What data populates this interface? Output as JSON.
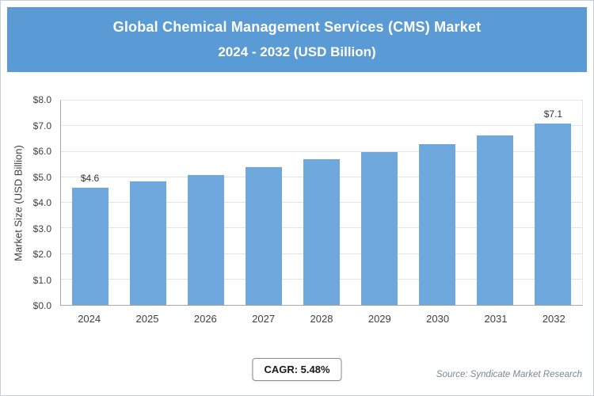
{
  "header": {
    "line1": "Global Chemical Management Services (CMS) Market",
    "line2": "2024 - 2032 (USD Billion)"
  },
  "chart_data": {
    "type": "bar",
    "title": "Global Chemical Management Services (CMS) Market 2024 - 2032 (USD Billion)",
    "categories": [
      "2024",
      "2025",
      "2026",
      "2027",
      "2028",
      "2029",
      "2030",
      "2031",
      "2032"
    ],
    "values": [
      4.6,
      4.85,
      5.1,
      5.4,
      5.7,
      6.0,
      6.3,
      6.65,
      7.1
    ],
    "bar_labels": [
      "$4.6",
      "",
      "",
      "",
      "",
      "",
      "",
      "",
      "$7.1"
    ],
    "xlabel": "",
    "ylabel": "Market Size (USD Billion)",
    "ylim": [
      0,
      8
    ],
    "ytick_step": 1,
    "ytick_labels": [
      "$0.0",
      "$1.0",
      "$2.0",
      "$3.0",
      "$4.0",
      "$5.0",
      "$6.0",
      "$7.0",
      "$8.0"
    ],
    "grid": true,
    "legend_position": "none",
    "bar_color": "#6fa8dc"
  },
  "footer": {
    "cagr": "CAGR: 5.48%",
    "source": "Source: Syndicate Market Research"
  },
  "colors": {
    "header_bg": "#5b9bd5",
    "bar": "#6fa8dc",
    "gridline": "#e4e4e4"
  }
}
